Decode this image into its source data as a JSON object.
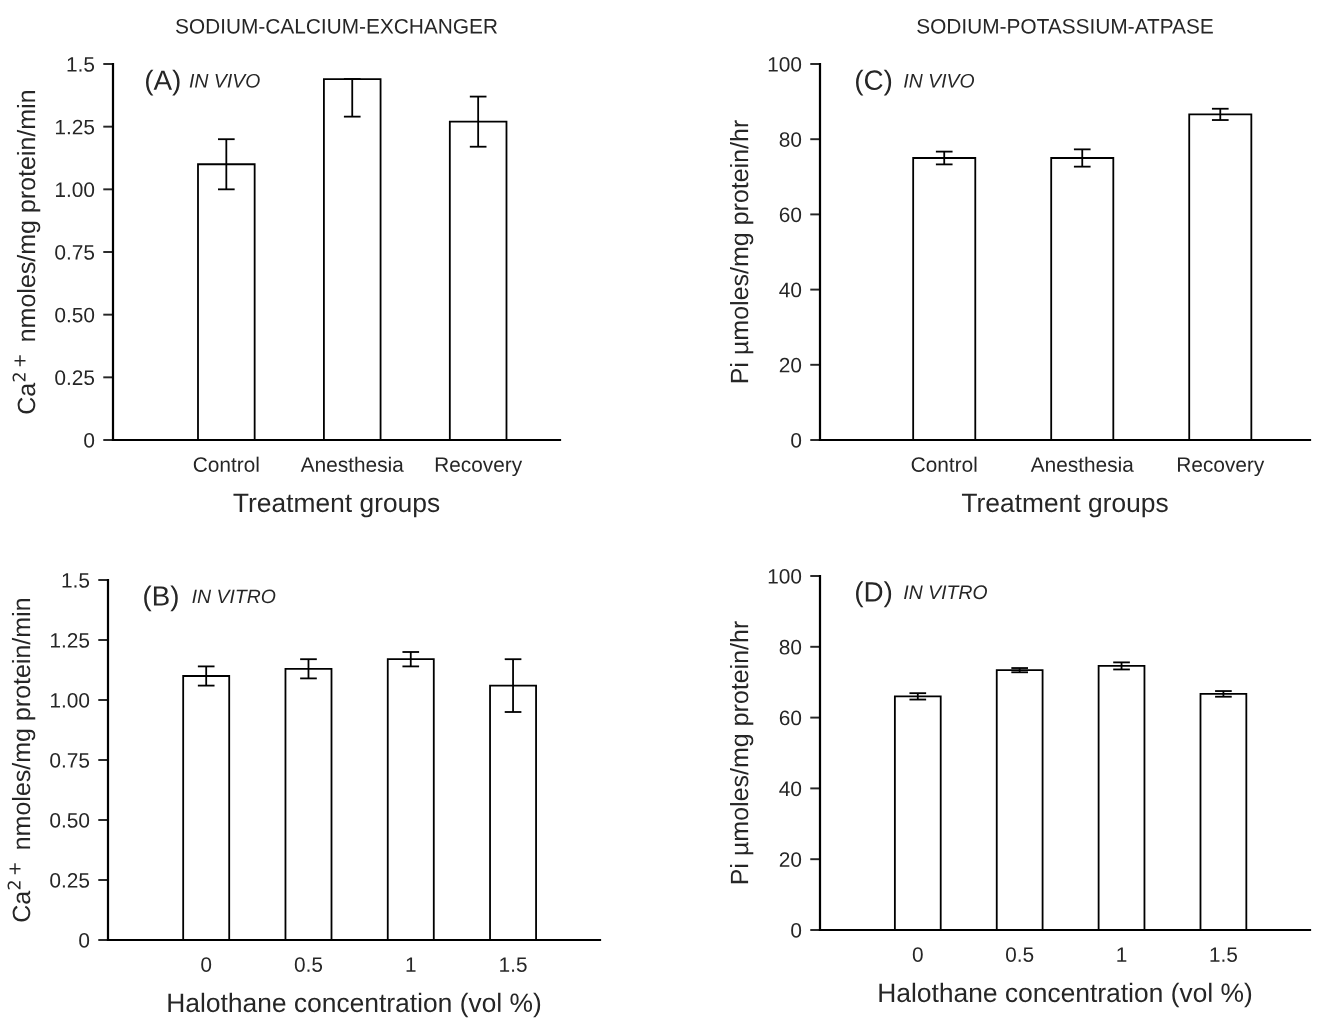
{
  "chart_data": [
    {
      "type": "bar",
      "title": "SODIUM-CALCIUM-EXCHANGER",
      "annotations": [
        "(A)",
        "IN VIVO"
      ],
      "xlabel": "Treatment groups",
      "ylabel": "Ca$^{2+}$ nmoles/mg protein/min",
      "categories": [
        "Control",
        "Anesthesia",
        "Recovery"
      ],
      "values": [
        1.1,
        1.44,
        1.27
      ],
      "errors": [
        0.1,
        [
          1.29,
          1.44
        ],
        0.1
      ],
      "color": "#ffffff",
      "ylim": [
        0,
        1.5
      ],
      "yticks": [
        0,
        {
          "value": 0.25,
          "label": "0.25"
        },
        {
          "value": 0.5,
          "label": "0.50"
        },
        {
          "value": 0.75,
          "label": "0.75"
        },
        {
          "value": 1,
          "label": "1.00"
        },
        {
          "value": 1.25,
          "label": "1.25"
        },
        1.5
      ],
      "grid": false,
      "legend": false
    },
    {
      "type": "bar",
      "title": "SODIUM-POTASSIUM-ATPASE",
      "annotations": [
        "(C)",
        "IN VIVO"
      ],
      "xlabel": "Treatment groups",
      "ylabel": "Pi µmoles/mg protein/hr",
      "categories": [
        "Control",
        "Anesthesia",
        "Recovery"
      ],
      "values": [
        75,
        75,
        86.6
      ],
      "errors": [
        1.7,
        2.3,
        1.5
      ],
      "color": "#ffffff",
      "ylim": [
        0,
        100
      ],
      "yticks": [
        0,
        20,
        40,
        60,
        80,
        100
      ],
      "grid": false,
      "legend": false
    },
    {
      "type": "bar",
      "annotations": [
        "(B)",
        "IN VITRO"
      ],
      "xlabel": "Halothane concentration (vol %)",
      "ylabel": "Ca$^{2+}$ nmoles/mg protein/min",
      "categories": [
        "0",
        "0.5",
        "1",
        "1.5"
      ],
      "values": [
        1.1,
        1.13,
        1.17,
        1.06
      ],
      "errors": [
        0.04,
        0.04,
        0.03,
        0.11
      ],
      "color": "#ffffff",
      "ylim": [
        0,
        1.5
      ],
      "yticks": [
        0,
        {
          "value": 0.25,
          "label": "0.25"
        },
        {
          "value": 0.5,
          "label": "0.50"
        },
        {
          "value": 0.75,
          "label": "0.75"
        },
        {
          "value": 1,
          "label": "1.00"
        },
        {
          "value": 1.25,
          "label": "1.25"
        },
        1.5
      ],
      "grid": false,
      "legend": false
    },
    {
      "type": "bar",
      "annotations": [
        "(D)",
        "IN VITRO"
      ],
      "xlabel": "Halothane concentration (vol %)",
      "ylabel": "Pi µmoles/mg protein/hr",
      "categories": [
        "0",
        "0.5",
        "1",
        "1.5"
      ],
      "values": [
        66.0,
        73.4,
        74.6,
        66.7
      ],
      "errors": [
        0.9,
        0.6,
        1.0,
        0.8
      ],
      "color": "#ffffff",
      "ylim": [
        0,
        100
      ],
      "yticks": [
        0,
        20,
        40,
        60,
        80,
        100
      ],
      "grid": false,
      "legend": false
    }
  ]
}
